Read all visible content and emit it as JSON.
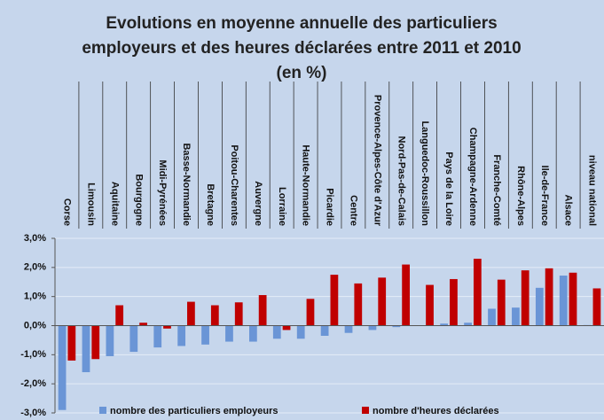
{
  "chart_data": {
    "type": "bar",
    "title": [
      "Evolutions en moyenne annuelle des particuliers",
      "employeurs et des heures déclarées entre 2011 et 2010",
      "(en %)"
    ],
    "categories": [
      "Corse",
      "Limousin",
      "Aquitaine",
      "Bourgogne",
      "Midi-Pyrénées",
      "Basse-Normandie",
      "Bretagne",
      "Poitou-Charentes",
      "Auvergne",
      "Lorraine",
      "Haute-Normandie",
      "Picardie",
      "Centre",
      "Provence-Alpes-Côte d'Azur",
      "Nord-Pas-de-Calais",
      "Languedoc-Roussillon",
      "Pays de la Loire",
      "Champagne-Ardenne",
      "Franche-Comté",
      "Rhône-Alpes",
      "Ile-de-France",
      "Alsace",
      "niveau national"
    ],
    "series": [
      {
        "name": "nombre des particuliers employeurs",
        "color": "#6a95d6",
        "values": [
          -2.9,
          -1.6,
          -1.05,
          -0.9,
          -0.75,
          -0.7,
          -0.65,
          -0.55,
          -0.55,
          -0.45,
          -0.45,
          -0.35,
          -0.25,
          -0.15,
          -0.05,
          0.0,
          0.07,
          0.1,
          0.58,
          0.62,
          1.3,
          1.72,
          0.02
        ]
      },
      {
        "name": "nombre d'heures déclarées",
        "color": "#c00000",
        "values": [
          -1.2,
          -1.15,
          0.7,
          0.1,
          -0.1,
          0.82,
          0.7,
          0.8,
          1.05,
          -0.15,
          0.92,
          1.75,
          1.45,
          1.65,
          2.1,
          1.4,
          1.6,
          2.3,
          1.58,
          1.9,
          1.97,
          1.82,
          1.28
        ]
      }
    ],
    "ylim": [
      -3,
      3
    ],
    "yticks": [
      {
        "value": -3,
        "label": "-3,0%"
      },
      {
        "value": -2,
        "label": "-2,0%"
      },
      {
        "value": -1,
        "label": "-1,0%"
      },
      {
        "value": 0,
        "label": "0,0%"
      },
      {
        "value": 1,
        "label": "1,0%"
      },
      {
        "value": 2,
        "label": "2,0%"
      },
      {
        "value": 3,
        "label": "3,0%"
      }
    ],
    "grid": true
  }
}
